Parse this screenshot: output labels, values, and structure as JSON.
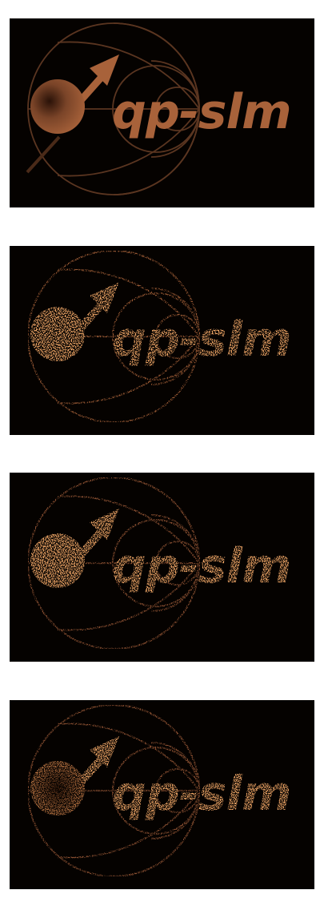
{
  "logo_text": "qp-slm",
  "colors": {
    "background": "#050200",
    "copper": "#a8623a",
    "copper_dim": "#5a3520",
    "speckle": "#f2a867"
  },
  "panels": [
    {
      "id": "target",
      "render": "clean"
    },
    {
      "id": "reconstruction-1",
      "render": "speckle"
    },
    {
      "id": "reconstruction-2",
      "render": "speckle"
    },
    {
      "id": "reconstruction-3",
      "render": "speckle"
    }
  ]
}
